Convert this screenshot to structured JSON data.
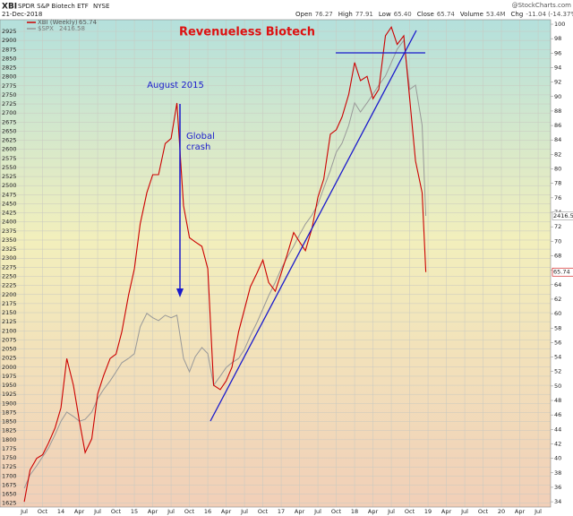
{
  "chart_data": {
    "type": "line",
    "symbol": "XBI",
    "name": "SPDR S&P Biotech ETF",
    "exchange": "NYSE",
    "date": "21-Dec-2018",
    "source": "@StockCharts.com",
    "quote": [
      {
        "label": "Open",
        "value": "76.27"
      },
      {
        "label": "High",
        "value": "77.91"
      },
      {
        "label": "Low",
        "value": "65.40"
      },
      {
        "label": "Close",
        "value": "65.74"
      },
      {
        "label": "Volume",
        "value": "53.4M"
      },
      {
        "label": "Chg",
        "value": "-11.04 (-14.37%)"
      }
    ],
    "annotations": [
      "Revenueless Biotech",
      "August 2015",
      "Global",
      "crash"
    ],
    "grid": true,
    "x": [
      2013.5,
      2013.58,
      2013.67,
      2013.75,
      2013.83,
      2013.92,
      2014,
      2014.08,
      2014.17,
      2014.25,
      2014.33,
      2014.42,
      2014.5,
      2014.58,
      2014.67,
      2014.75,
      2014.83,
      2014.92,
      2015,
      2015.08,
      2015.17,
      2015.25,
      2015.33,
      2015.42,
      2015.5,
      2015.58,
      2015.67,
      2015.75,
      2015.83,
      2015.92,
      2016,
      2016.08,
      2016.17,
      2016.25,
      2016.33,
      2016.42,
      2016.5,
      2016.58,
      2016.67,
      2016.75,
      2016.83,
      2016.92,
      2017,
      2017.08,
      2017.17,
      2017.25,
      2017.33,
      2017.42,
      2017.5,
      2017.58,
      2017.67,
      2017.75,
      2017.83,
      2017.92,
      2018,
      2018.08,
      2018.17,
      2018.25,
      2018.33,
      2018.42,
      2018.5,
      2018.58,
      2018.67,
      2018.75,
      2018.83,
      2018.92,
      2018.97
    ],
    "series": [
      {
        "name": "XBI (Weekly)",
        "color": "#cc0000",
        "axis": "y2",
        "values": [
          34.0,
          38.4,
          40.0,
          40.5,
          42.1,
          44.2,
          47.0,
          53.8,
          50.1,
          45.2,
          40.8,
          42.7,
          48.9,
          51.4,
          53.8,
          54.4,
          57.5,
          62.5,
          66.2,
          72.4,
          76.7,
          79.2,
          79.2,
          83.5,
          84.2,
          89.1,
          74.9,
          70.5,
          69.9,
          69.3,
          66.2,
          50.1,
          49.5,
          50.7,
          52.6,
          57.5,
          60.6,
          63.7,
          65.6,
          67.4,
          64.3,
          63.1,
          65.6,
          68.1,
          71.2,
          69.9,
          68.7,
          71.8,
          76.1,
          78.6,
          84.8,
          85.4,
          87.2,
          90.3,
          94.7,
          92.2,
          92.8,
          89.7,
          91.0,
          98.4,
          99.6,
          97.2,
          98.4,
          89.7,
          81.1,
          76.7,
          65.74
        ]
      },
      {
        "name": "$SPX",
        "color": "#999999",
        "values": [
          1666,
          1703,
          1728,
          1753,
          1777,
          1814,
          1851,
          1876,
          1864,
          1851,
          1856,
          1876,
          1913,
          1938,
          1962,
          1987,
          2012,
          2024,
          2037,
          2111,
          2148,
          2136,
          2128,
          2143,
          2136,
          2143,
          2024,
          1987,
          2029,
          2054,
          2037,
          1950,
          1975,
          1999,
          2012,
          2024,
          2049,
          2086,
          2123,
          2160,
          2197,
          2234,
          2271,
          2301,
          2333,
          2365,
          2394,
          2419,
          2449,
          2493,
          2542,
          2592,
          2617,
          2666,
          2728,
          2703,
          2728,
          2752,
          2777,
          2802,
          2839,
          2876,
          2900,
          2765,
          2777,
          2666,
          2416.58
        ]
      }
    ],
    "xlim": [
      2013.17,
      2020.67
    ],
    "xticks": [
      {
        "value": 2013.5,
        "label": "Jul"
      },
      {
        "value": 2013.75,
        "label": "Oct"
      },
      {
        "value": 2014,
        "label": "14"
      },
      {
        "value": 2014.25,
        "label": "Apr"
      },
      {
        "value": 2014.5,
        "label": "Jul"
      },
      {
        "value": 2014.75,
        "label": "Oct"
      },
      {
        "value": 2015,
        "label": "15"
      },
      {
        "value": 2015.25,
        "label": "Apr"
      },
      {
        "value": 2015.5,
        "label": "Jul"
      },
      {
        "value": 2015.75,
        "label": "Oct"
      },
      {
        "value": 2016,
        "label": "16"
      },
      {
        "value": 2016.25,
        "label": "Apr"
      },
      {
        "value": 2016.5,
        "label": "Jul"
      },
      {
        "value": 2016.75,
        "label": "Oct"
      },
      {
        "value": 2017,
        "label": "17"
      },
      {
        "value": 2017.25,
        "label": "Apr"
      },
      {
        "value": 2017.5,
        "label": "Jul"
      },
      {
        "value": 2017.75,
        "label": "Oct"
      },
      {
        "value": 2018,
        "label": "18"
      },
      {
        "value": 2018.25,
        "label": "Apr"
      },
      {
        "value": 2018.5,
        "label": "Jul"
      },
      {
        "value": 2018.75,
        "label": "Oct"
      },
      {
        "value": 2019,
        "label": "19"
      },
      {
        "value": 2019.25,
        "label": "Apr"
      },
      {
        "value": 2019.5,
        "label": "Jul"
      },
      {
        "value": 2019.75,
        "label": "Oct"
      },
      {
        "value": 2020,
        "label": "20"
      },
      {
        "value": 2020.25,
        "label": "Apr"
      },
      {
        "value": 2020.5,
        "label": "Jul"
      }
    ],
    "ylim": [
      1614.5,
      2957.1
    ],
    "yticks": [
      1625,
      1650,
      1675,
      1700,
      1725,
      1750,
      1775,
      1800,
      1825,
      1850,
      1875,
      1900,
      1925,
      1950,
      1975,
      2000,
      2025,
      2050,
      2075,
      2100,
      2125,
      2150,
      2175,
      2200,
      2225,
      2250,
      2275,
      2300,
      2325,
      2350,
      2375,
      2400,
      2425,
      2450,
      2475,
      2500,
      2525,
      2550,
      2575,
      2600,
      2625,
      2650,
      2675,
      2700,
      2725,
      2750,
      2775,
      2800,
      2825,
      2850,
      2875,
      2900,
      2925
    ],
    "y2lim": [
      33.27,
      100.62
    ],
    "y2ticks": [
      34,
      36,
      38,
      40,
      42,
      44,
      46,
      48,
      50,
      52,
      54,
      56,
      58,
      60,
      62,
      64,
      66,
      68,
      70,
      72,
      74,
      76,
      78,
      80,
      82,
      84,
      86,
      88,
      90,
      92,
      94,
      96,
      98,
      100
    ]
  }
}
